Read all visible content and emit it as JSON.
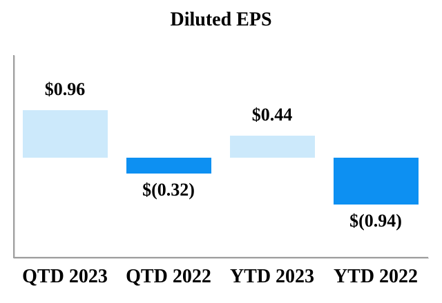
{
  "chart_data": {
    "type": "bar",
    "title": "Diluted EPS",
    "categories": [
      "QTD 2023",
      "QTD 2022",
      "YTD 2023",
      "YTD 2022"
    ],
    "values": [
      0.96,
      -0.32,
      0.44,
      -0.94
    ],
    "data_labels": [
      "$0.96",
      "$(0.32)",
      "$0.44",
      "$(0.94)"
    ],
    "positive_color": "#cce9fb",
    "negative_color": "#0d90f2",
    "axis_color": "#a0a0a0",
    "axis_shadow_color": "#dcdcdc",
    "text_color": "#000000",
    "xlabel": "",
    "ylabel": "",
    "legend": "none",
    "grid": false,
    "baseline": 0,
    "y_axis_tick_labels": "none"
  }
}
